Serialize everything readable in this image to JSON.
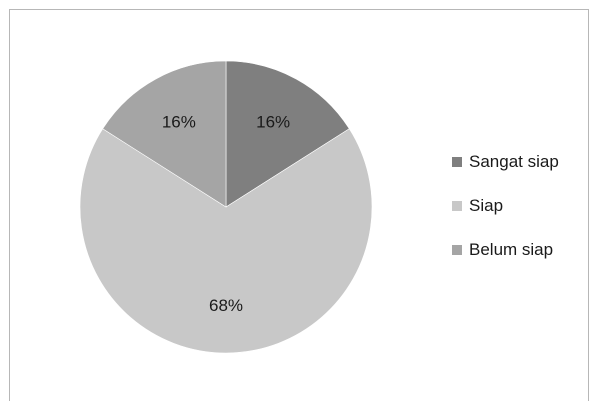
{
  "chart_data": {
    "type": "pie",
    "title": "",
    "categories": [
      "Sangat siap",
      "Siap",
      "Belum siap"
    ],
    "values": [
      16,
      68,
      16
    ],
    "value_labels": [
      "16%",
      "68%",
      "16%"
    ],
    "colors": [
      "#7f7f7f",
      "#c8c8c8",
      "#a5a5a5"
    ],
    "legend_position": "right"
  }
}
